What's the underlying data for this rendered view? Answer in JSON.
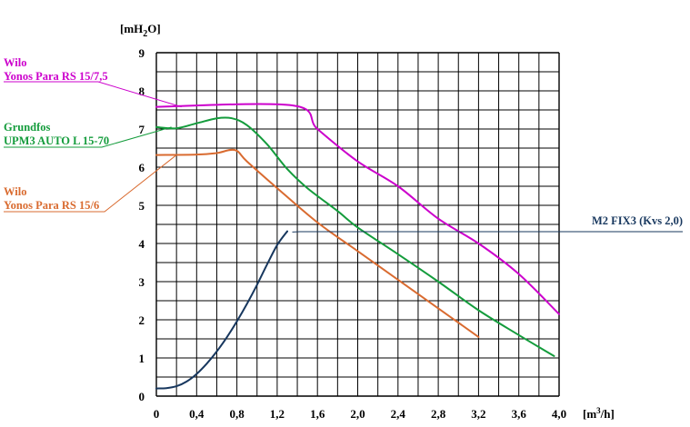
{
  "chart_data": {
    "type": "line",
    "ylabel": "[mH2O]",
    "xlabel": "[m3/h]",
    "xlim": [
      0,
      4.0
    ],
    "ylim": [
      0,
      9
    ],
    "grid": true,
    "x_ticks": [
      "0",
      "0,4",
      "0,8",
      "1,2",
      "1,6",
      "2,0",
      "2,4",
      "2,8",
      "3,2",
      "3,6",
      "4,0"
    ],
    "y_ticks": [
      "0",
      "1",
      "2",
      "3",
      "4",
      "5",
      "6",
      "7",
      "8",
      "9"
    ],
    "series": [
      {
        "name_lines": [
          "Wilo",
          "Yonos Para RS 15/7,5"
        ],
        "color": "#cc00cc",
        "points": [
          [
            0,
            7.58
          ],
          [
            1.35,
            7.62
          ],
          [
            1.6,
            7.0
          ],
          [
            2.0,
            6.15
          ],
          [
            2.4,
            5.5
          ],
          [
            2.8,
            4.65
          ],
          [
            3.2,
            4.0
          ],
          [
            3.6,
            3.2
          ],
          [
            4.0,
            2.15
          ]
        ],
        "label_anchor": [
          0.25,
          7.58
        ]
      },
      {
        "name_lines": [
          "Grundfos",
          "UPM3 AUTO L 15-70"
        ],
        "color": "#149c3c",
        "points": [
          [
            0,
            7.05
          ],
          [
            0.2,
            7.02
          ],
          [
            0.4,
            7.15
          ],
          [
            0.6,
            7.28
          ],
          [
            0.75,
            7.28
          ],
          [
            0.9,
            7.1
          ],
          [
            1.1,
            6.6
          ],
          [
            1.3,
            5.95
          ],
          [
            1.5,
            5.45
          ],
          [
            1.8,
            4.85
          ],
          [
            2.0,
            4.42
          ],
          [
            2.4,
            3.72
          ],
          [
            2.8,
            3.0
          ],
          [
            3.2,
            2.25
          ],
          [
            3.6,
            1.6
          ],
          [
            3.95,
            1.05
          ]
        ],
        "label_anchor": [
          0.15,
          7.05
        ]
      },
      {
        "name_lines": [
          "Wilo",
          "Yonos Para RS 15/6"
        ],
        "color": "#d96b30",
        "points": [
          [
            0,
            6.32
          ],
          [
            0.4,
            6.33
          ],
          [
            0.6,
            6.37
          ],
          [
            0.78,
            6.45
          ],
          [
            0.9,
            6.15
          ],
          [
            1.2,
            5.45
          ],
          [
            1.6,
            4.55
          ],
          [
            2.0,
            3.8
          ],
          [
            2.4,
            3.05
          ],
          [
            2.8,
            2.3
          ],
          [
            3.2,
            1.55
          ]
        ],
        "label_anchor": [
          0.2,
          6.32
        ]
      },
      {
        "name_lines": [
          "M2 FIX3 (Kvs 2,0)"
        ],
        "color": "#17375e",
        "points": [
          [
            0,
            0.2
          ],
          [
            0.1,
            0.21
          ],
          [
            0.2,
            0.26
          ],
          [
            0.3,
            0.38
          ],
          [
            0.4,
            0.58
          ],
          [
            0.5,
            0.85
          ],
          [
            0.6,
            1.17
          ],
          [
            0.7,
            1.54
          ],
          [
            0.8,
            1.96
          ],
          [
            0.9,
            2.42
          ],
          [
            1.0,
            2.92
          ],
          [
            1.1,
            3.45
          ],
          [
            1.2,
            3.96
          ],
          [
            1.3,
            4.32
          ]
        ],
        "label_anchor": [
          1.35,
          4.3
        ]
      }
    ]
  }
}
